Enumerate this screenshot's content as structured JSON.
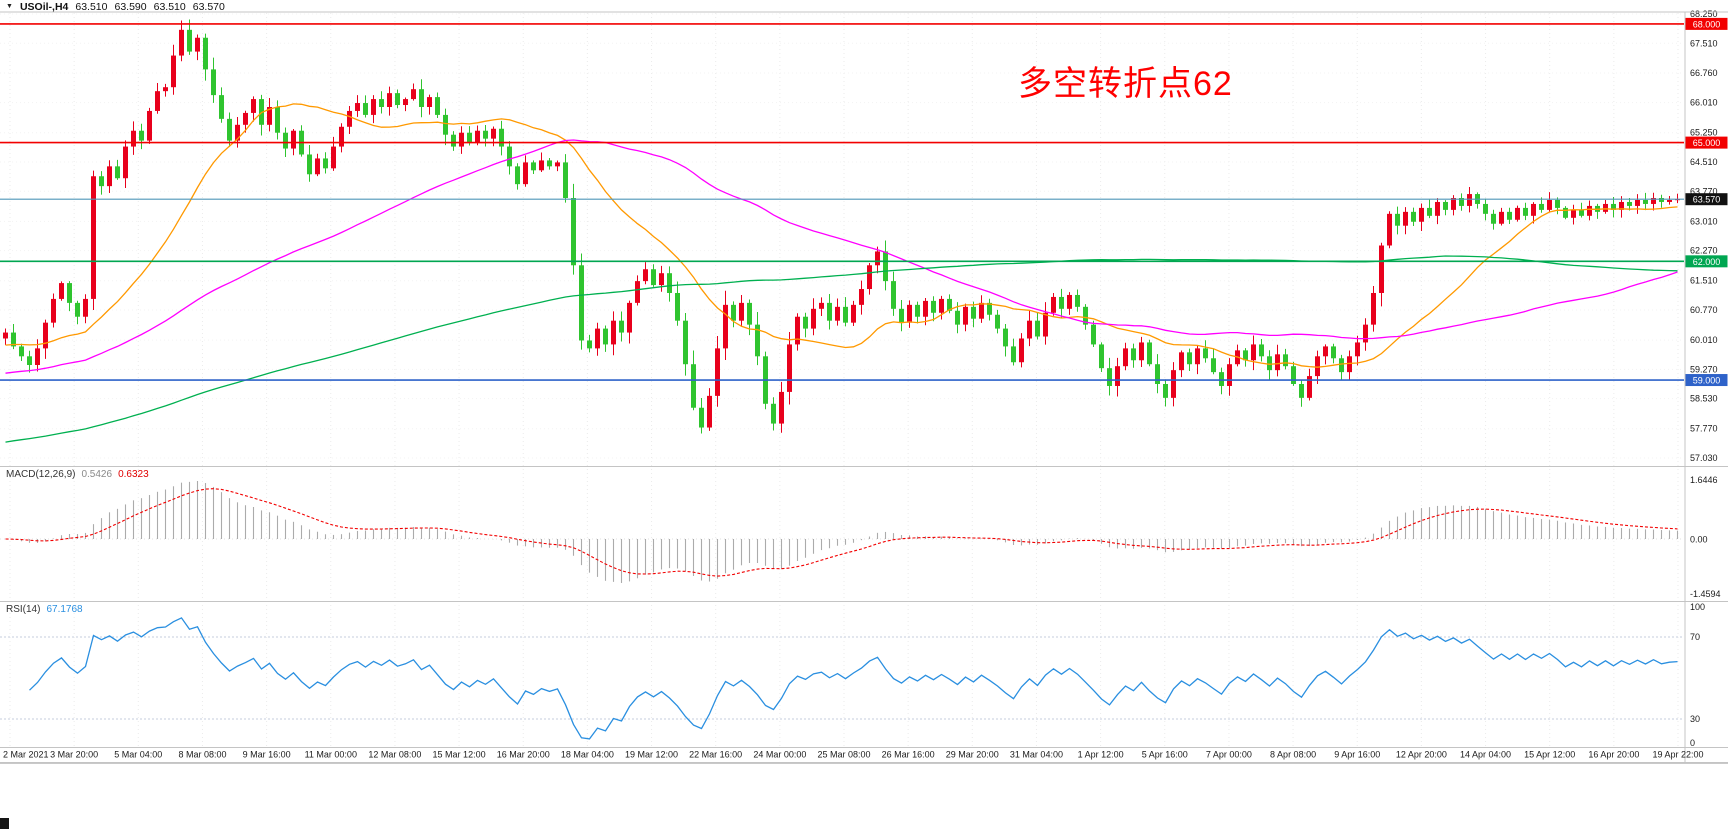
{
  "header": {
    "symbol_timeframe": "USOil-,H4",
    "open": "63.510",
    "high": "63.590",
    "low": "63.510",
    "close": "63.570"
  },
  "chart_data": {
    "type": "candlestick",
    "symbol": "USOil-",
    "timeframe": "H4",
    "annotation": {
      "text": "多空转折点62",
      "color": "#ff0000"
    },
    "y_axis": {
      "min": 57.03,
      "max": 68.25,
      "ticks": [
        "68.250",
        "67.510",
        "66.760",
        "66.010",
        "65.250",
        "64.510",
        "63.770",
        "63.010",
        "62.270",
        "61.510",
        "60.770",
        "60.010",
        "59.270",
        "58.530",
        "57.770",
        "57.030"
      ]
    },
    "x_axis": {
      "labels": [
        "2 Mar 2021",
        "3 Mar 20:00",
        "5 Mar 04:00",
        "8 Mar 08:00",
        "9 Mar 16:00",
        "11 Mar 00:00",
        "12 Mar 08:00",
        "15 Mar 12:00",
        "16 Mar 20:00",
        "18 Mar 04:00",
        "19 Mar 12:00",
        "22 Mar 16:00",
        "24 Mar 00:00",
        "25 Mar 08:00",
        "26 Mar 16:00",
        "29 Mar 20:00",
        "31 Mar 04:00",
        "1 Apr 12:00",
        "5 Apr 16:00",
        "7 Apr 00:00",
        "8 Apr 08:00",
        "9 Apr 16:00",
        "12 Apr 20:00",
        "14 Apr 04:00",
        "15 Apr 12:00",
        "16 Apr 20:00",
        "19 Apr 22:00"
      ]
    },
    "horizontal_lines": [
      {
        "price": 68.0,
        "label": "68.000",
        "color": "#f20000"
      },
      {
        "price": 65.0,
        "label": "65.000",
        "color": "#f20000"
      },
      {
        "price": 62.0,
        "label": "62.000",
        "color": "#00a651"
      },
      {
        "price": 59.0,
        "label": "59.000",
        "color": "#2e62c9"
      }
    ],
    "current_price": {
      "value": 63.57,
      "label": "63.570",
      "line_color": "#4f96b8",
      "badge_color": "#111111"
    },
    "candles": {
      "up_color": "#e8001c",
      "down_color": "#2fc42f",
      "closes": [
        60.2,
        59.85,
        59.6,
        59.38,
        59.8,
        60.45,
        61.05,
        61.45,
        60.95,
        60.6,
        61.05,
        64.15,
        63.9,
        64.4,
        64.1,
        64.9,
        65.3,
        65.05,
        65.8,
        66.3,
        66.4,
        67.2,
        67.85,
        67.3,
        67.65,
        66.85,
        66.2,
        65.6,
        65.05,
        65.45,
        65.75,
        66.1,
        65.45,
        65.9,
        65.25,
        64.85,
        65.3,
        64.7,
        64.2,
        64.6,
        64.35,
        64.9,
        65.4,
        65.8,
        66.0,
        65.7,
        66.1,
        65.9,
        66.25,
        65.95,
        66.1,
        66.35,
        65.9,
        66.15,
        65.7,
        65.2,
        64.9,
        65.25,
        65.0,
        65.3,
        65.1,
        65.35,
        64.9,
        64.4,
        63.95,
        64.5,
        64.3,
        64.55,
        64.4,
        64.5,
        63.6,
        61.9,
        60.0,
        59.8,
        60.3,
        59.9,
        60.5,
        60.2,
        60.95,
        61.5,
        61.8,
        61.4,
        61.7,
        61.2,
        60.5,
        59.4,
        58.3,
        57.8,
        58.6,
        59.8,
        60.9,
        60.5,
        60.95,
        60.4,
        59.6,
        58.4,
        57.9,
        58.7,
        59.9,
        60.6,
        60.3,
        60.8,
        60.95,
        60.5,
        60.85,
        60.45,
        60.9,
        61.3,
        61.9,
        62.25,
        61.5,
        60.8,
        60.45,
        60.9,
        60.6,
        61.0,
        60.7,
        61.05,
        60.75,
        60.4,
        60.85,
        60.55,
        60.95,
        60.65,
        60.3,
        59.85,
        59.45,
        60.05,
        60.5,
        60.1,
        60.7,
        61.1,
        60.8,
        61.15,
        60.85,
        60.4,
        59.9,
        59.3,
        58.85,
        59.35,
        59.8,
        59.5,
        59.95,
        59.4,
        58.9,
        58.55,
        59.25,
        59.7,
        59.4,
        59.8,
        59.55,
        59.2,
        58.85,
        59.4,
        59.75,
        59.5,
        59.9,
        59.6,
        59.25,
        59.65,
        59.35,
        58.9,
        58.55,
        59.1,
        59.6,
        59.85,
        59.55,
        59.2,
        59.6,
        59.95,
        60.4,
        61.2,
        62.4,
        63.2,
        62.9,
        63.25,
        63.0,
        63.35,
        63.15,
        63.5,
        63.3,
        63.6,
        63.4,
        63.7,
        63.45,
        63.2,
        62.95,
        63.25,
        63.05,
        63.35,
        63.15,
        63.45,
        63.3,
        63.55,
        63.35,
        63.1,
        63.3,
        63.15,
        63.4,
        63.25,
        63.45,
        63.3,
        63.5,
        63.4,
        63.55,
        63.45,
        63.6,
        63.5,
        63.55,
        63.57
      ]
    },
    "moving_averages": [
      {
        "name": "ma-fast",
        "color": "#ff9900"
      },
      {
        "name": "ma-medium",
        "color": "#ff00ff"
      },
      {
        "name": "ma-slow",
        "color": "#00b050"
      }
    ],
    "indicators": {
      "macd": {
        "label": "MACD(12,26,9)",
        "value_main": "0.5426",
        "value_signal": "0.6323",
        "axis_ticks": [
          "1.6446",
          "0.00",
          "-1.4594"
        ],
        "histogram_color": "#ababab",
        "signal_color": "#f20000"
      },
      "rsi": {
        "label": "RSI(14)",
        "value": "67.1768",
        "axis_ticks": [
          "100",
          "70",
          "30",
          "0"
        ],
        "levels": [
          70,
          30
        ],
        "line_color": "#2a8fe0"
      }
    }
  }
}
